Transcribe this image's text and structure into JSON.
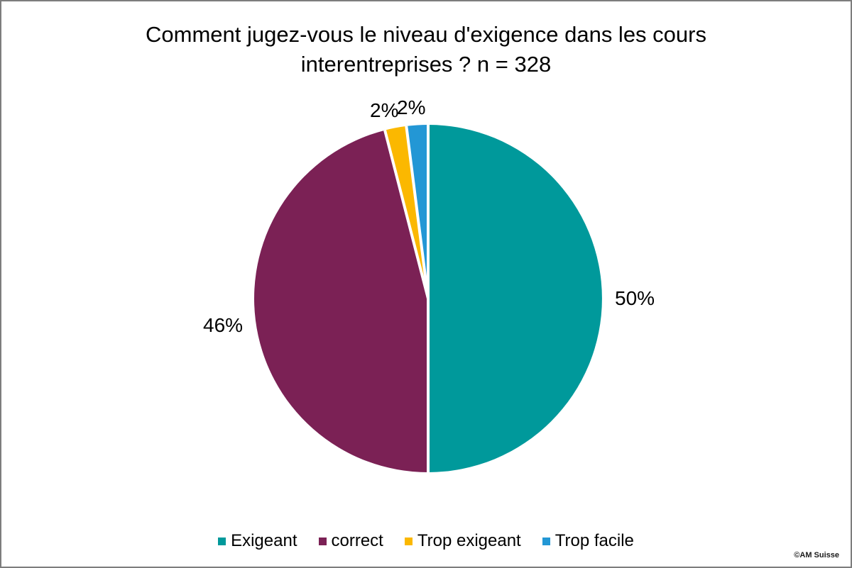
{
  "frame": {
    "copyright": "©AM Suisse"
  },
  "chart_data": {
    "type": "pie",
    "title": "Comment jugez-vous le niveau d'exigence dans les cours interentreprises ? n = 328",
    "n": 328,
    "categories": [
      "Exigeant",
      "correct",
      "Trop exigeant",
      "Trop facile"
    ],
    "values": [
      50,
      46,
      2,
      2
    ],
    "value_unit": "%",
    "data_labels": [
      "50%",
      "46%",
      "2%",
      "2%"
    ],
    "colors": [
      "#00999B",
      "#7B2155",
      "#FBB800",
      "#2397D5"
    ],
    "start_angle_deg": 0,
    "direction": "clockwise",
    "slice_separator_color": "#FFFFFF",
    "legend_position": "bottom",
    "legend_labels": [
      "Exigeant",
      "correct",
      "Trop exigeant",
      "Trop facile"
    ]
  }
}
